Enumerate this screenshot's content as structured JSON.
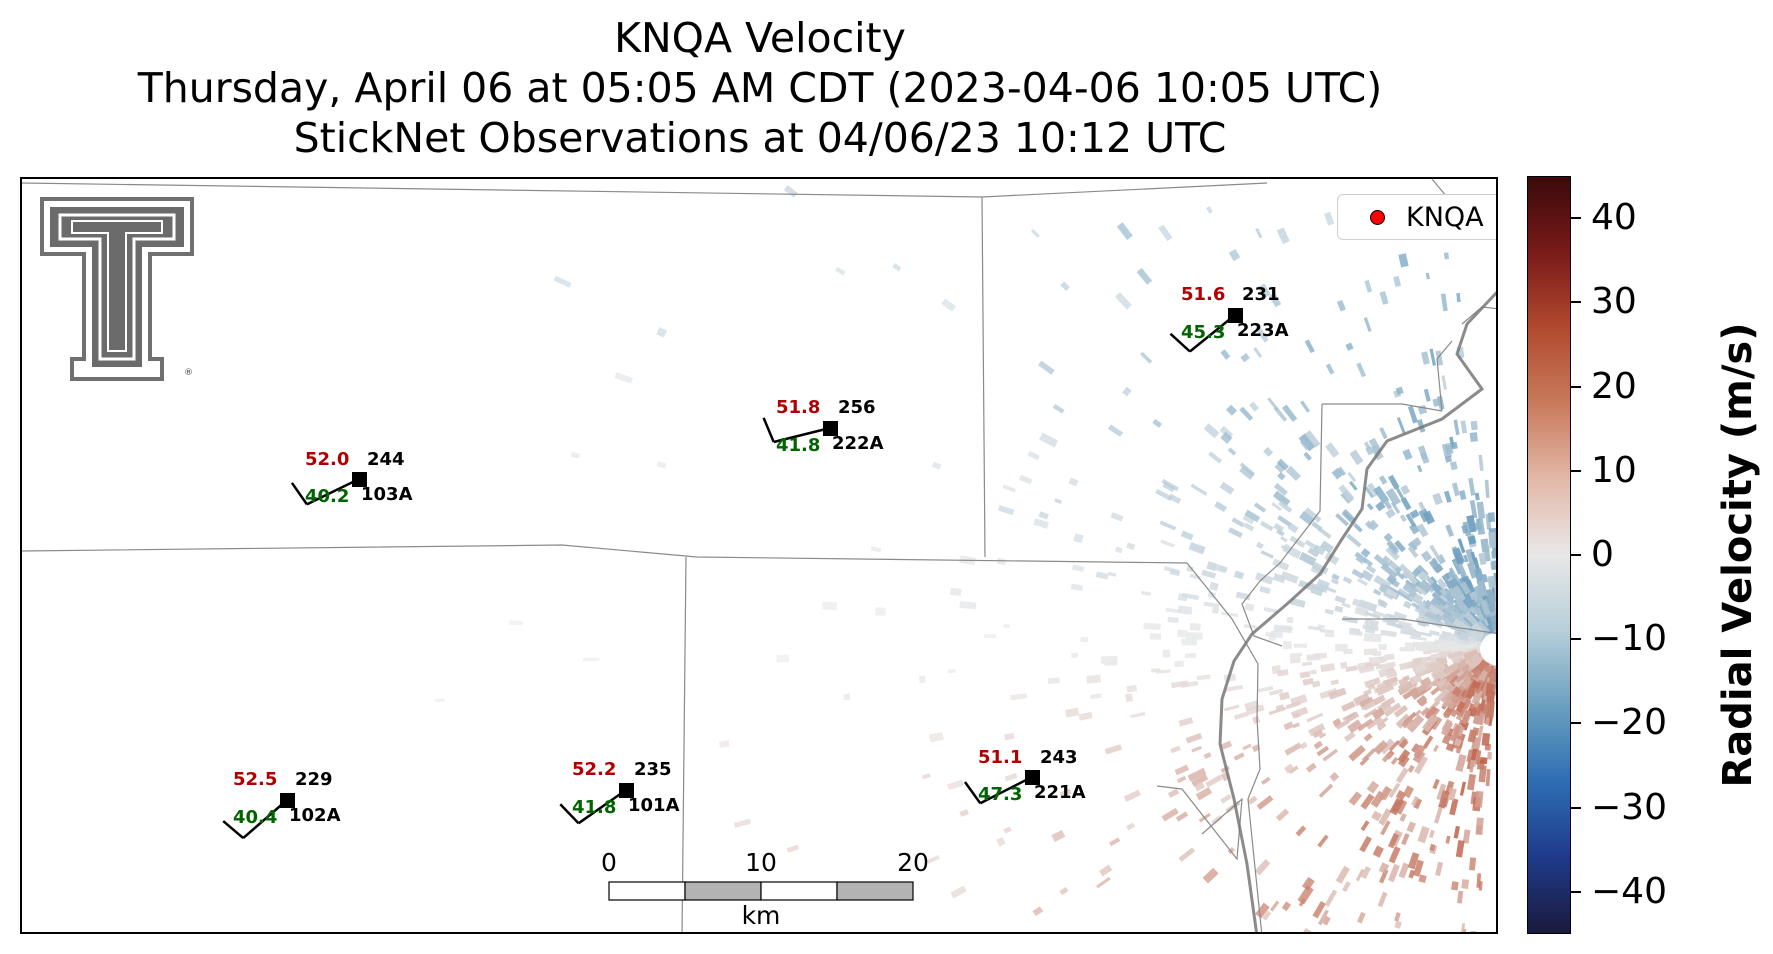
{
  "title": {
    "line1": "KNQA Velocity",
    "line2": "Thursday, April 06 at 05:05 AM CDT (2023-04-06 10:05 UTC)",
    "line3": "StickNet Observations at 04/06/23 10:12 UTC"
  },
  "legend": {
    "label": "KNQA",
    "marker_color": "#ff0000"
  },
  "stations": [
    {
      "id": "103A",
      "temp": "52.0",
      "dew": "40.2",
      "dir": "244"
    },
    {
      "id": "222A",
      "temp": "51.8",
      "dew": "41.8",
      "dir": "256"
    },
    {
      "id": "223A",
      "temp": "51.6",
      "dew": "45.3",
      "dir": "231"
    },
    {
      "id": "102A",
      "temp": "52.5",
      "dew": "40.4",
      "dir": "229"
    },
    {
      "id": "101A",
      "temp": "52.2",
      "dew": "41.8",
      "dir": "235"
    },
    {
      "id": "221A",
      "temp": "51.1",
      "dew": "47.3",
      "dir": "243"
    }
  ],
  "scale_bar": {
    "ticks": [
      "0",
      "10",
      "20"
    ],
    "unit": "km"
  },
  "colorbar": {
    "label": "Radial Velocity (m/s)",
    "ticks": [
      "40",
      "30",
      "20",
      "10",
      "0",
      "−10",
      "−20",
      "−30",
      "−40"
    ],
    "range": [
      -45,
      45
    ],
    "colors": [
      "#1a1a3d",
      "#1f3a8a",
      "#2e6db3",
      "#6aa0c0",
      "#b7cfd9",
      "#e8e8e8",
      "#e3b8a8",
      "#c97a5c",
      "#b14a2e",
      "#7a1a1a",
      "#3b0a0a"
    ]
  },
  "logo": {
    "name": "texas-tech-double-t-logo"
  },
  "colors": {
    "temp_text": "#b00000",
    "dew_text": "#006400",
    "border_line": "#888888",
    "river_line": "#777777"
  }
}
